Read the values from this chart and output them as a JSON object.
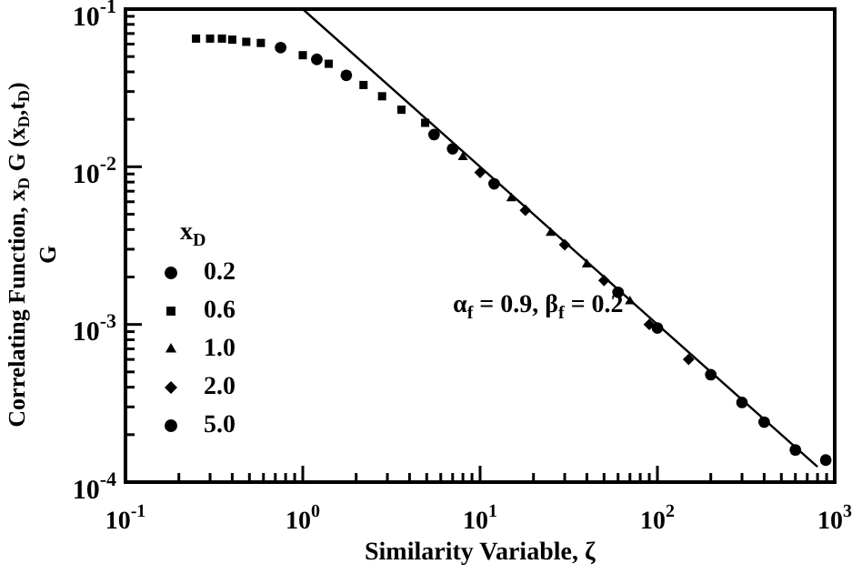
{
  "chart_data": {
    "type": "scatter",
    "xlabel": "Similarity Variable, ζ",
    "ylabel": "Correlating Function, x$_{D}$ G (x$_{D}$,t$_{D}$)\nG",
    "legend_title": "x$_{D}$",
    "legend": "left",
    "log": "xy",
    "grid": false,
    "annotations": [
      "α$_{f}$ = 0.9, β$_{f}$ = 0.2"
    ],
    "xlim": [
      0.1,
      1000
    ],
    "ylim": [
      0.0001,
      0.1
    ],
    "xticks": [
      {
        "value": 0.1,
        "label": "10$^{-1}$"
      },
      {
        "value": 0.2,
        "label": null
      },
      {
        "value": 0.3,
        "label": null
      },
      {
        "value": 0.4,
        "label": null
      },
      {
        "value": 0.5,
        "label": null
      },
      {
        "value": 0.6,
        "label": null
      },
      {
        "value": 0.7,
        "label": null
      },
      {
        "value": 0.8,
        "label": null
      },
      {
        "value": 0.9,
        "label": null
      },
      {
        "value": 1,
        "label": "10$^{0}$"
      },
      {
        "value": 2,
        "label": null
      },
      {
        "value": 3,
        "label": null
      },
      {
        "value": 4,
        "label": null
      },
      {
        "value": 5,
        "label": null
      },
      {
        "value": 6,
        "label": null
      },
      {
        "value": 7,
        "label": null
      },
      {
        "value": 8,
        "label": null
      },
      {
        "value": 9,
        "label": null
      },
      {
        "value": 10,
        "label": "10$^{1}$"
      },
      {
        "value": 20,
        "label": null
      },
      {
        "value": 30,
        "label": null
      },
      {
        "value": 40,
        "label": null
      },
      {
        "value": 50,
        "label": null
      },
      {
        "value": 60,
        "label": null
      },
      {
        "value": 70,
        "label": null
      },
      {
        "value": 80,
        "label": null
      },
      {
        "value": 90,
        "label": null
      },
      {
        "value": 100,
        "label": "10$^{2}$"
      },
      {
        "value": 200,
        "label": null
      },
      {
        "value": 300,
        "label": null
      },
      {
        "value": 400,
        "label": null
      },
      {
        "value": 500,
        "label": null
      },
      {
        "value": 600,
        "label": null
      },
      {
        "value": 700,
        "label": null
      },
      {
        "value": 800,
        "label": null
      },
      {
        "value": 900,
        "label": null
      },
      {
        "value": 1000,
        "label": "10$^{3}$"
      }
    ],
    "yticks": [
      {
        "value": 0.0001,
        "label": "10$^{-4}$"
      },
      {
        "value": 0.0002,
        "label": null
      },
      {
        "value": 0.0003,
        "label": null
      },
      {
        "value": 0.0004,
        "label": null
      },
      {
        "value": 0.0005,
        "label": null
      },
      {
        "value": 0.0006,
        "label": null
      },
      {
        "value": 0.0007,
        "label": null
      },
      {
        "value": 0.0008,
        "label": null
      },
      {
        "value": 0.0009,
        "label": null
      },
      {
        "value": 0.001,
        "label": "10$^{-3}$"
      },
      {
        "value": 0.002,
        "label": null
      },
      {
        "value": 0.003,
        "label": null
      },
      {
        "value": 0.004,
        "label": null
      },
      {
        "value": 0.005,
        "label": null
      },
      {
        "value": 0.006,
        "label": null
      },
      {
        "value": 0.007,
        "label": null
      },
      {
        "value": 0.008,
        "label": null
      },
      {
        "value": 0.009,
        "label": null
      },
      {
        "value": 0.01,
        "label": "10$^{-2}$"
      },
      {
        "value": 0.02,
        "label": null
      },
      {
        "value": 0.03,
        "label": null
      },
      {
        "value": 0.04,
        "label": null
      },
      {
        "value": 0.05,
        "label": null
      },
      {
        "value": 0.06,
        "label": null
      },
      {
        "value": 0.07,
        "label": null
      },
      {
        "value": 0.08,
        "label": null
      },
      {
        "value": 0.09,
        "label": null
      },
      {
        "value": 0.1,
        "label": "10$^{-1}$"
      }
    ],
    "series": [
      {
        "name": "0.2",
        "type": "scatter",
        "marker": "circle",
        "color": "#000000",
        "x": [
          0.75,
          1.2,
          1.76,
          5.5,
          7,
          12
        ],
        "values": [
          0.057,
          0.048,
          0.038,
          0.016,
          0.013,
          0.0078
        ]
      },
      {
        "name": "0.6",
        "type": "scatter",
        "marker": "square",
        "color": "#000000",
        "x": [
          0.25,
          0.3,
          0.35,
          0.4,
          0.48,
          0.58,
          1.0,
          1.4,
          2.2,
          2.8,
          3.6,
          4.9
        ],
        "values": [
          0.065,
          0.065,
          0.065,
          0.064,
          0.062,
          0.061,
          0.051,
          0.045,
          0.033,
          0.028,
          0.023,
          0.019
        ]
      },
      {
        "name": "1.0",
        "type": "scatter",
        "marker": "triangle",
        "color": "#000000",
        "x": [
          8,
          15,
          25,
          40,
          70
        ],
        "values": [
          0.0115,
          0.0063,
          0.0038,
          0.0024,
          0.0014
        ]
      },
      {
        "name": "2.0",
        "type": "scatter",
        "marker": "diamond",
        "color": "#000000",
        "x": [
          10,
          18,
          30,
          50,
          90,
          150
        ],
        "values": [
          0.0092,
          0.0053,
          0.0032,
          0.0019,
          0.001,
          0.0006
        ]
      },
      {
        "name": "5.0",
        "type": "scatter",
        "marker": "circle",
        "color": "#000000",
        "x": [
          60,
          100,
          200,
          300,
          400,
          600,
          890
        ],
        "values": [
          0.0016,
          0.00095,
          0.00048,
          0.00032,
          0.00024,
          0.00016,
          0.000138
        ]
      },
      {
        "type": "line",
        "marker": "none",
        "line_style": "solid",
        "color": "#000000",
        "x": [
          1,
          800
        ],
        "values": [
          0.1,
          0.000125
        ]
      }
    ]
  }
}
